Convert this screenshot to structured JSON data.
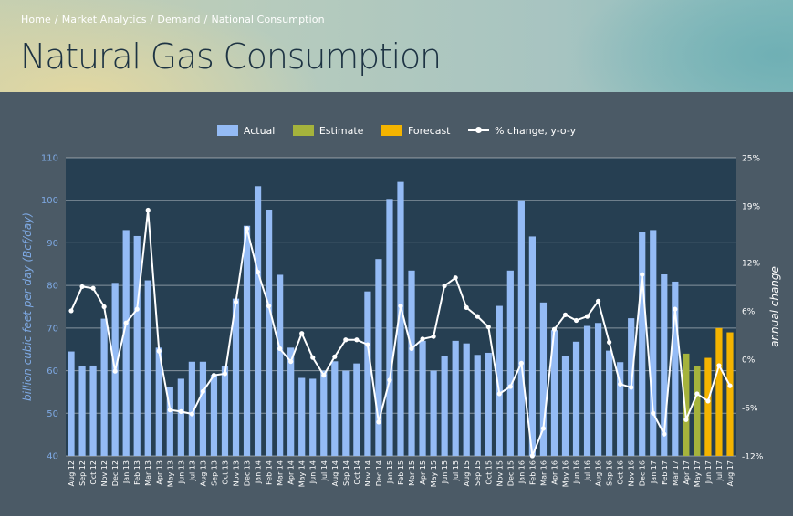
{
  "breadcrumb": [
    "Home",
    "Market Analytics",
    "Demand",
    "National Consumption"
  ],
  "page_title": "Natural Gas Consumption",
  "colors": {
    "actual": "#94bbf5",
    "estimate": "#a5b33c",
    "forecast": "#f4b400",
    "line": "#ffffff",
    "plot_bg": "#263f52",
    "left_axis_text": "#7ea9e3"
  },
  "chart_data": {
    "type": "bar",
    "title": "",
    "ylabel": "billion cubic feet per day (Bcf/day)",
    "y2label": "annual change",
    "ylim": [
      40,
      110
    ],
    "y2lim": [
      -12,
      25
    ],
    "yticks": [
      40,
      50,
      60,
      70,
      80,
      90,
      100,
      110
    ],
    "y2ticks": [
      "25%",
      "19%",
      "12%",
      "6%",
      "0%",
      "-6%",
      "-12%"
    ],
    "legend_position": "top-center",
    "grid": true,
    "categories": [
      "Aug 12",
      "Sep 12",
      "Oct 12",
      "Nov 12",
      "Dec 12",
      "Jan 13",
      "Feb 13",
      "Mar 13",
      "Apr 13",
      "May 13",
      "Jun 13",
      "Jul 13",
      "Aug 13",
      "Sep 13",
      "Oct 13",
      "Nov 13",
      "Dec 13",
      "Jan 14",
      "Feb 14",
      "Mar 14",
      "Apr 14",
      "May 14",
      "Jun 14",
      "Jul 14",
      "Aug 14",
      "Sep 14",
      "Oct 14",
      "Nov 14",
      "Dec 14",
      "Jan 15",
      "Feb 15",
      "Mar 15",
      "Apr 15",
      "May 15",
      "Jun 15",
      "Jul 15",
      "Aug 15",
      "Sep 15",
      "Oct 15",
      "Nov 15",
      "Dec 15",
      "Jan 16",
      "Feb 16",
      "Mar 16",
      "Apr 16",
      "May 16",
      "Jun 16",
      "Jul 16",
      "Aug 16",
      "Sep 16",
      "Oct 16",
      "Nov 16",
      "Dec 16",
      "Jan 17",
      "Feb 17",
      "Mar 17",
      "Apr 17",
      "May 17",
      "Jun 17",
      "Jul 17",
      "Aug 17"
    ],
    "series": [
      {
        "name": "Actual",
        "kind": "bar",
        "values": [
          64.5,
          61,
          61.2,
          72.2,
          80.6,
          93,
          91.6,
          81.2,
          65.4,
          56.2,
          58.1,
          62.1,
          62.1,
          59,
          61,
          76.9,
          94,
          103.3,
          97.8,
          82.5,
          65.4,
          58.3,
          58.1,
          60,
          62.2,
          60,
          61.7,
          78.6,
          86.2,
          100.3,
          104.3,
          83.5,
          67,
          60,
          63.5,
          67,
          66.4,
          63.7,
          64.2,
          75.2,
          83.5,
          100,
          91.5,
          76,
          69.5,
          63.5,
          66.8,
          70.5,
          71.2,
          64.7,
          62,
          72.3,
          92.5,
          93,
          82.6,
          80.9,
          null,
          null,
          null,
          null,
          null
        ]
      },
      {
        "name": "Estimate",
        "kind": "bar",
        "values": [
          null,
          null,
          null,
          null,
          null,
          null,
          null,
          null,
          null,
          null,
          null,
          null,
          null,
          null,
          null,
          null,
          null,
          null,
          null,
          null,
          null,
          null,
          null,
          null,
          null,
          null,
          null,
          null,
          null,
          null,
          null,
          null,
          null,
          null,
          null,
          null,
          null,
          null,
          null,
          null,
          null,
          null,
          null,
          null,
          null,
          null,
          null,
          null,
          null,
          null,
          null,
          null,
          null,
          null,
          null,
          null,
          64,
          61,
          null,
          null,
          null
        ]
      },
      {
        "name": "Forecast",
        "kind": "bar",
        "values": [
          null,
          null,
          null,
          null,
          null,
          null,
          null,
          null,
          null,
          null,
          null,
          null,
          null,
          null,
          null,
          null,
          null,
          null,
          null,
          null,
          null,
          null,
          null,
          null,
          null,
          null,
          null,
          null,
          null,
          null,
          null,
          null,
          null,
          null,
          null,
          null,
          null,
          null,
          null,
          null,
          null,
          null,
          null,
          null,
          null,
          null,
          null,
          null,
          null,
          null,
          null,
          null,
          null,
          null,
          null,
          null,
          null,
          null,
          63,
          70,
          69
        ]
      },
      {
        "name": "% change, y-o-y",
        "kind": "line",
        "axis": "right",
        "values": [
          6,
          9,
          8.8,
          6.5,
          -1.5,
          4.5,
          6.2,
          18.5,
          1,
          -6.3,
          -6.5,
          -6.8,
          -4,
          -2,
          -1.8,
          7.1,
          16.2,
          10.8,
          6.6,
          1.3,
          -0.3,
          3.2,
          0.2,
          -2,
          0.3,
          2.4,
          2.4,
          1.8,
          -7.8,
          -2.6,
          6.6,
          1.3,
          2.5,
          2.8,
          9.1,
          10.1,
          6.4,
          5.3,
          4,
          -4.3,
          -3.4,
          -0.5,
          -12,
          -8.6,
          3.7,
          5.5,
          4.8,
          5.3,
          7.2,
          2.1,
          -3.1,
          -3.5,
          10.5,
          -6.7,
          -9.3,
          6.2,
          -7.5,
          -4.3,
          -5.2,
          -0.8,
          -3.3
        ]
      }
    ]
  }
}
